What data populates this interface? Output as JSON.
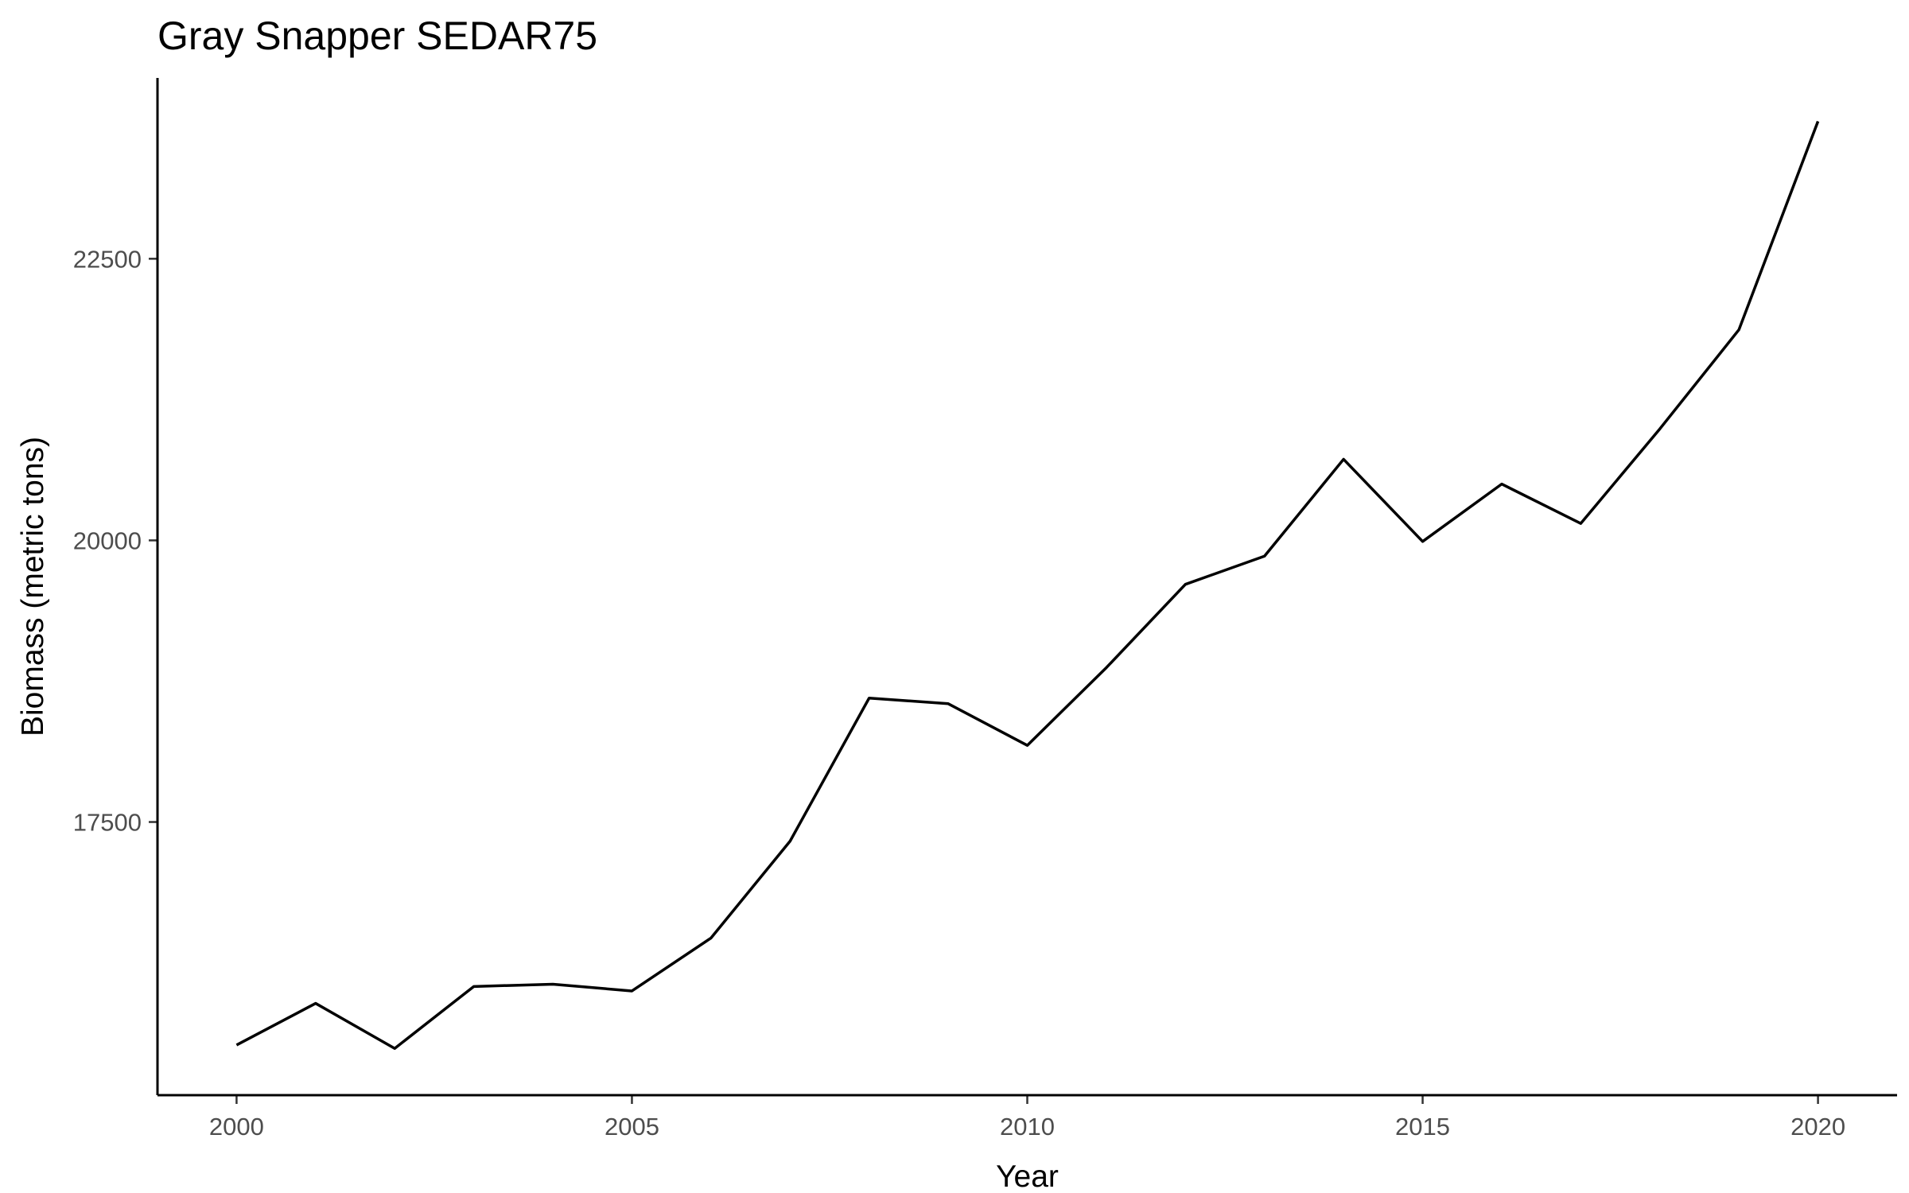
{
  "chart_data": {
    "type": "line",
    "title": "Gray Snapper SEDAR75",
    "xlabel": "Year",
    "ylabel": "Biomass (metric tons)",
    "x": [
      2000,
      2001,
      2002,
      2003,
      2004,
      2005,
      2006,
      2007,
      2008,
      2009,
      2010,
      2011,
      2012,
      2013,
      2014,
      2015,
      2016,
      2017,
      2018,
      2019,
      2020
    ],
    "series": [
      {
        "color": "#000000",
        "values": [
          15520,
          15890,
          15490,
          16040,
          16060,
          16000,
          16470,
          17330,
          18600,
          18550,
          18180,
          18870,
          19610,
          19860,
          20720,
          19990,
          20500,
          20150,
          20990,
          21870,
          23720
        ]
      }
    ],
    "xticks": [
      2000,
      2005,
      2010,
      2015,
      2020
    ],
    "xtick_labels": [
      "2000",
      "2005",
      "2010",
      "2015",
      "2020"
    ],
    "yticks": [
      17500,
      20000,
      22500
    ],
    "ytick_labels": [
      "17500",
      "20000",
      "22500"
    ],
    "xlim": [
      1999,
      2021
    ],
    "ylim": [
      15075,
      24105
    ],
    "grid": false,
    "legend": "none"
  }
}
